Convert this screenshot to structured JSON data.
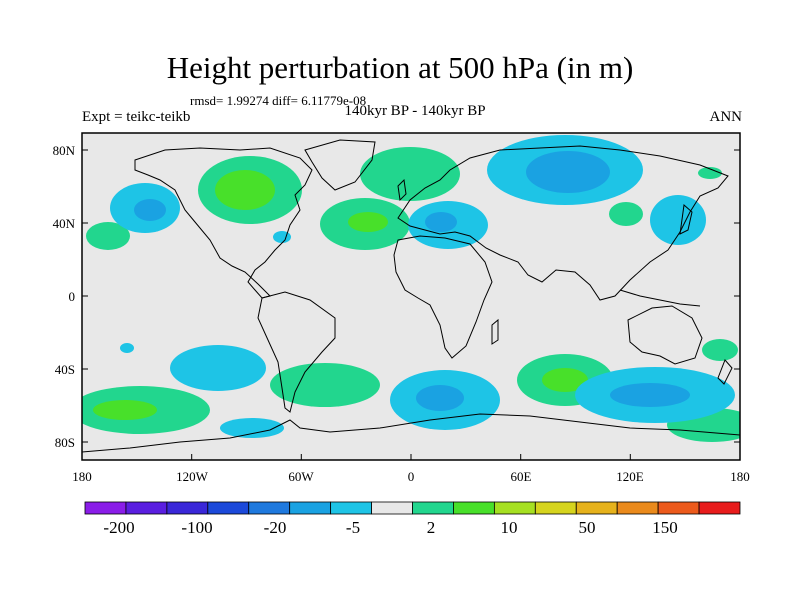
{
  "title": "Height perturbation at 500 hPa (in m)",
  "stats": "rmsd= 1.99274 diff= 6.11779e-08",
  "experiment": "Expt = teikc-teikb",
  "period": "140kyr BP - 140kyr BP",
  "season": "ANN",
  "lat_ticks": [
    "80N",
    "40N",
    "0",
    "40S",
    "80S"
  ],
  "lon_ticks": [
    "180",
    "120W",
    "60W",
    "0",
    "60E",
    "120E",
    "180"
  ],
  "colorbar_labels": [
    "-200",
    "-100",
    "-20",
    "-5",
    "2",
    "10",
    "50",
    "150"
  ],
  "colorbar_colors": [
    "#8a1de8",
    "#5a1ee0",
    "#3a27d8",
    "#1c49da",
    "#1f79de",
    "#1aa2e2",
    "#1ec4e6",
    "#e8e8e8",
    "#22d68e",
    "#48e02a",
    "#a6e022",
    "#d6d41e",
    "#e6b21c",
    "#ea8a1c",
    "#ec5a1c",
    "#e81c1c"
  ],
  "map_background": "#e8e8e8"
}
